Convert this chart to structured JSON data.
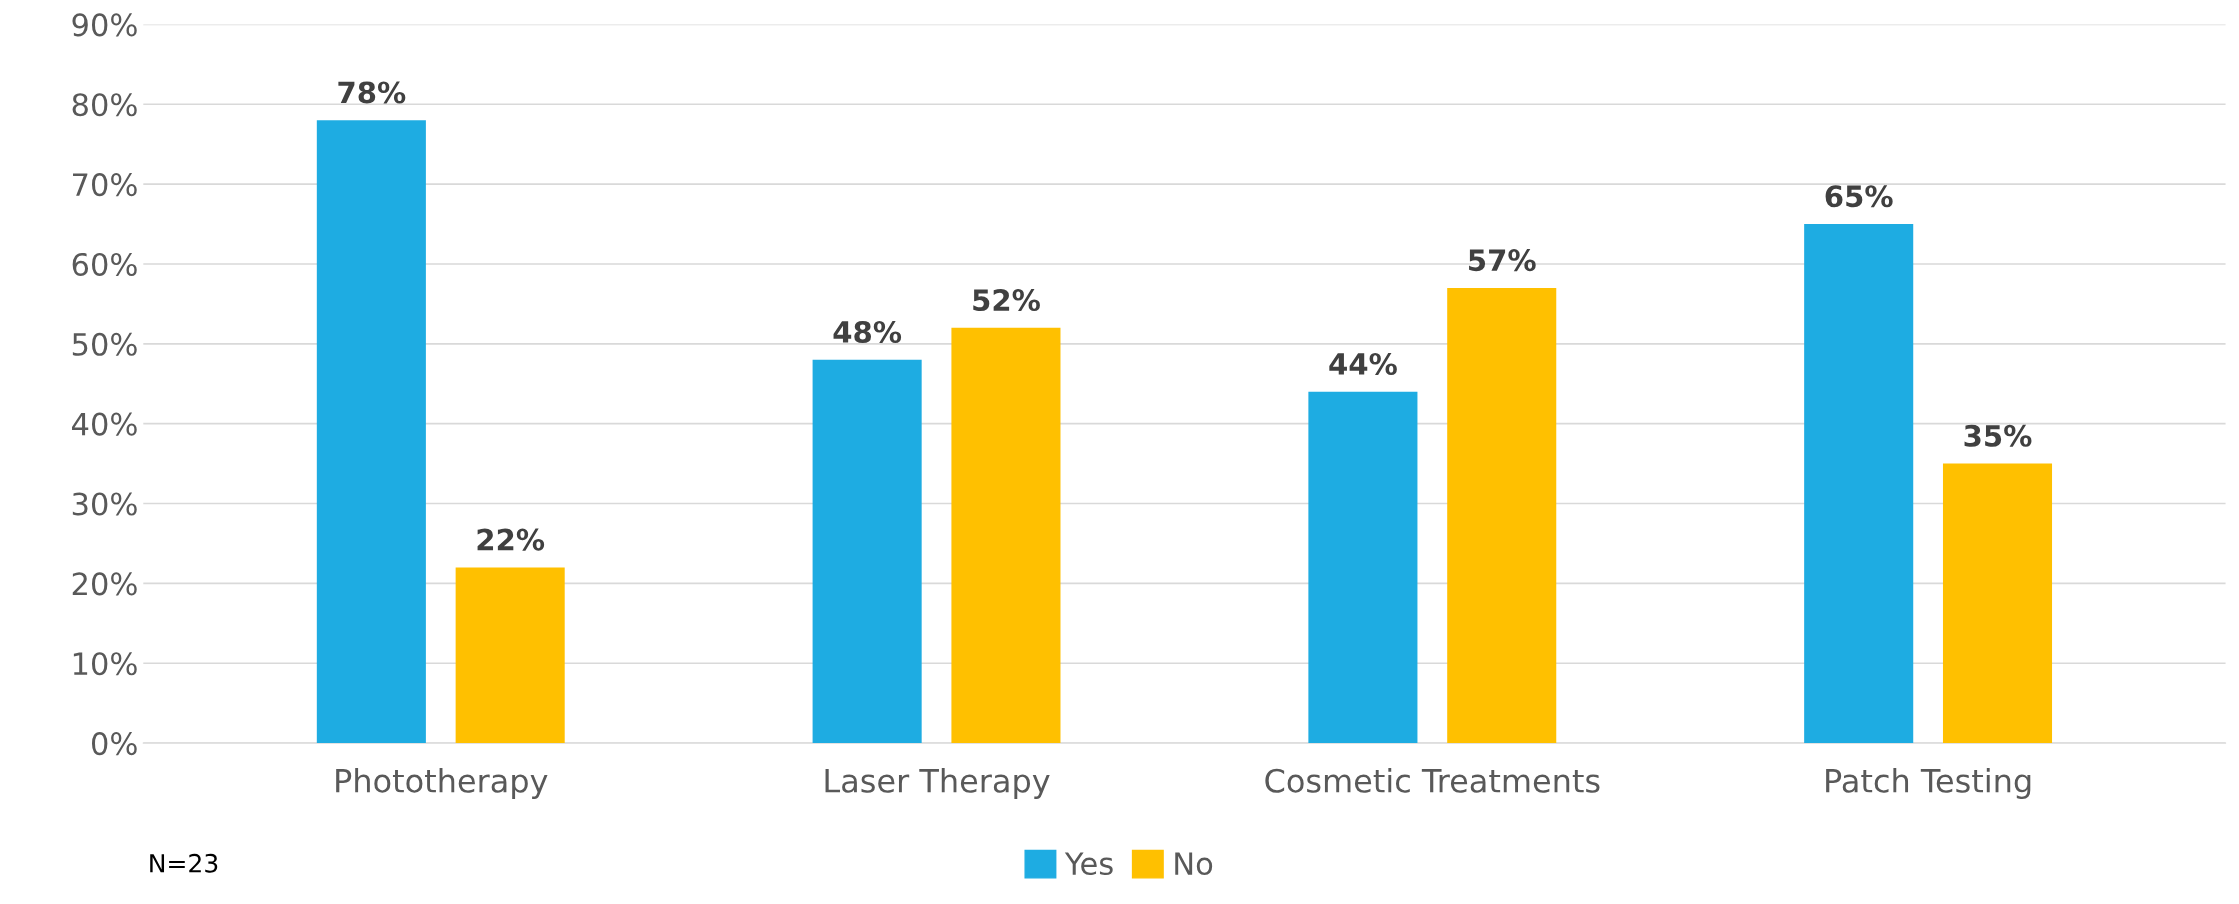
{
  "chart_data": {
    "type": "bar",
    "categories": [
      "Phototherapy",
      "Laser Therapy",
      "Cosmetic Treatments",
      "Patch Testing"
    ],
    "series": [
      {
        "name": "Yes",
        "color": "#1eace2",
        "values": [
          78,
          48,
          44,
          65
        ],
        "value_labels": [
          "78%",
          "48%",
          "44%",
          "65%"
        ]
      },
      {
        "name": "No",
        "color": "#ffc000",
        "values": [
          22,
          52,
          57,
          35
        ],
        "value_labels": [
          "22%",
          "52%",
          "57%",
          "35%"
        ]
      }
    ],
    "ylim": [
      0,
      90
    ],
    "yticks": [
      {
        "value": 0,
        "label": "0%"
      },
      {
        "value": 10,
        "label": "10%"
      },
      {
        "value": 20,
        "label": "20%"
      },
      {
        "value": 30,
        "label": "30%"
      },
      {
        "value": 40,
        "label": "40%"
      },
      {
        "value": 50,
        "label": "50%"
      },
      {
        "value": 60,
        "label": "60%"
      },
      {
        "value": 70,
        "label": "70%"
      },
      {
        "value": 80,
        "label": "80%"
      },
      {
        "value": 90,
        "label": "90%"
      }
    ],
    "grid": "y",
    "legend": "bottom",
    "annotations": [
      "N=23"
    ]
  }
}
